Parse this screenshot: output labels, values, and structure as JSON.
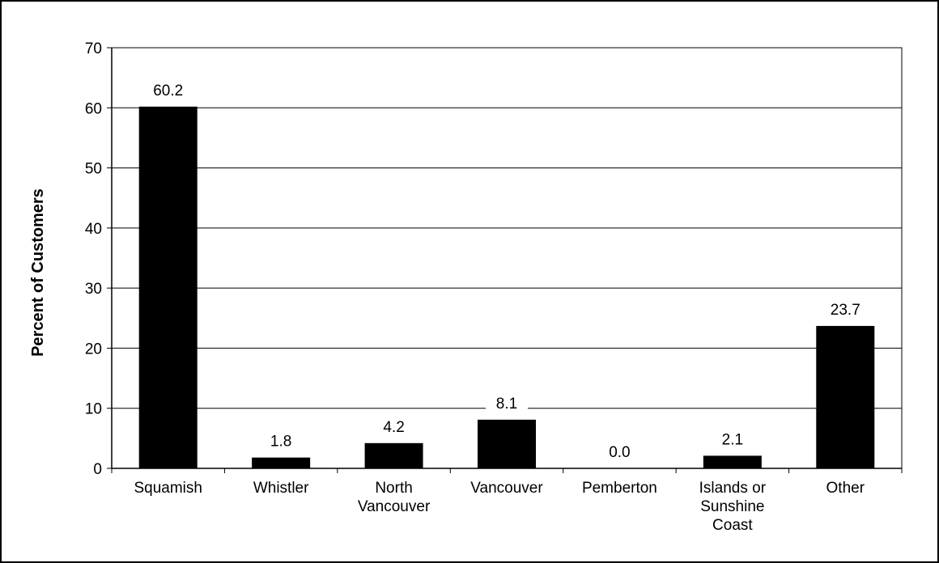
{
  "chart_data": {
    "type": "bar",
    "categories": [
      [
        "Squamish"
      ],
      [
        "Whistler"
      ],
      [
        "North",
        "Vancouver"
      ],
      [
        "Vancouver"
      ],
      [
        "Pemberton"
      ],
      [
        "Islands or",
        "Sunshine",
        "Coast"
      ],
      [
        "Other"
      ]
    ],
    "values": [
      60.2,
      1.8,
      4.2,
      8.1,
      0.0,
      2.1,
      23.7
    ],
    "data_labels": [
      "60.2",
      "1.8",
      "4.2",
      "8.1",
      "0.0",
      "2.1",
      "23.7"
    ],
    "title": "",
    "xlabel": "",
    "ylabel": "Percent of Customers",
    "ylim": [
      0,
      70
    ],
    "yticks": [
      0,
      10,
      20,
      30,
      40,
      50,
      60,
      70
    ],
    "grid": true,
    "legend": "none",
    "bar_color": "#000000"
  }
}
